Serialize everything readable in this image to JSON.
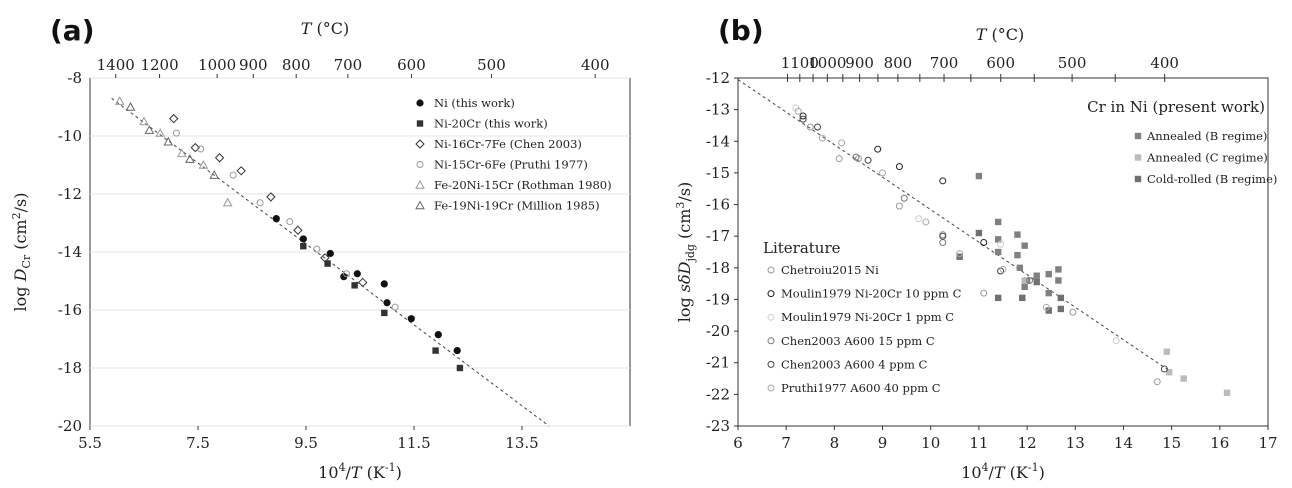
{
  "charts": [
    {
      "panel_label": "(a)",
      "xlabel_main": "10",
      "xlabel_sup": "4",
      "xlabel_rest": "/T (K",
      "xlabel_sup2": "-1",
      "xlabel_end": ")",
      "ylabel": "log D",
      "ylabel_sub": "Cr",
      "ylabel_unit": " (cm²/s)",
      "top_axis_label": "T (°C)",
      "x_ticks": [
        "5.5",
        "7.5",
        "9.5",
        "11.5",
        "13.5"
      ],
      "y_ticks": [
        "-8",
        "-10",
        "-12",
        "-14",
        "-16",
        "-18",
        "-20"
      ],
      "top_ticks": [
        "1400",
        "1200",
        "1000",
        "900",
        "800",
        "700",
        "600",
        "500",
        "400"
      ]
    },
    {
      "panel_label": "(b)",
      "xlabel_main": "10",
      "xlabel_sup": "4",
      "xlabel_rest": "/T (K",
      "xlabel_sup2": "-1",
      "xlabel_end": ")",
      "ylabel": "log sδD",
      "ylabel_sub": "jdg",
      "ylabel_unit": " (cm³/s)",
      "top_axis_label": "T (°C)",
      "x_ticks": [
        "6",
        "7",
        "8",
        "9",
        "10",
        "11",
        "12",
        "13",
        "14",
        "15",
        "16",
        "17"
      ],
      "y_ticks": [
        "-12",
        "-13",
        "-14",
        "-15",
        "-16",
        "-17",
        "-18",
        "-19",
        "-20",
        "-21",
        "-22",
        "-23"
      ],
      "top_ticks": [
        "1100",
        "1000",
        "900",
        "800",
        "700",
        "600",
        "500",
        "400"
      ],
      "legend_present_title": "Cr in Ni (present work)",
      "legend_literature_title": "Literature"
    }
  ],
  "chart_data": [
    {
      "type": "scatter",
      "title": "(a)",
      "xlabel": "10^4/T (K^-1)",
      "ylabel": "log D_Cr (cm^2/s)",
      "xlim": [
        5.5,
        15.5
      ],
      "ylim": [
        -20,
        -8
      ],
      "top_axis": {
        "label": "T (°C)",
        "ticks_celsius": [
          1400,
          1200,
          1000,
          900,
          800,
          700,
          600,
          500,
          400
        ]
      },
      "fit_line": {
        "x": [
          5.9,
          14.0
        ],
        "y": [
          -8.7,
          -20.0
        ],
        "style": "dashed"
      },
      "legend_position": "top-right",
      "series": [
        {
          "name": "Ni (this work)",
          "marker": "filled-circle",
          "color": "#111111",
          "x": [
            8.95,
            9.45,
            9.95,
            10.45,
            10.95,
            11.45,
            11.95,
            12.3,
            10.2,
            11.0
          ],
          "y": [
            -12.85,
            -13.55,
            -14.05,
            -14.75,
            -15.1,
            -16.3,
            -16.85,
            -17.4,
            -14.85,
            -15.75
          ]
        },
        {
          "name": "Ni-20Cr (this work)",
          "marker": "filled-square",
          "color": "#333333",
          "x": [
            9.45,
            9.9,
            10.4,
            10.95,
            11.9,
            12.35
          ],
          "y": [
            -13.8,
            -14.4,
            -15.15,
            -16.1,
            -17.4,
            -18.0
          ]
        },
        {
          "name": "Ni-16Cr-7Fe (Chen 2003)",
          "marker": "open-diamond",
          "color": "#333333",
          "x": [
            7.05,
            7.45,
            7.9,
            8.3,
            8.85,
            9.35,
            9.85,
            10.55
          ],
          "y": [
            -9.4,
            -10.4,
            -10.75,
            -11.2,
            -12.1,
            -13.25,
            -14.2,
            -15.05
          ]
        },
        {
          "name": "Ni-15Cr-6Fe (Pruthi 1977)",
          "marker": "open-circle",
          "color": "#999999",
          "x": [
            7.1,
            7.55,
            8.15,
            8.65,
            9.2,
            9.7,
            10.25,
            11.15
          ],
          "y": [
            -9.9,
            -10.45,
            -11.35,
            -12.3,
            -12.95,
            -13.9,
            -14.75,
            -15.9
          ]
        },
        {
          "name": "Fe-20Ni-15Cr (Rothman 1980)",
          "marker": "open-triangle",
          "color": "#999999",
          "x": [
            6.05,
            6.5,
            6.8,
            7.2,
            7.6,
            8.05
          ],
          "y": [
            -8.8,
            -9.5,
            -9.9,
            -10.6,
            -11.0,
            -12.3
          ]
        },
        {
          "name": "Fe-19Ni-19Cr (Million 1985)",
          "marker": "open-triangle",
          "color": "#666666",
          "x": [
            6.25,
            6.6,
            6.95,
            7.35,
            7.8
          ],
          "y": [
            -9.0,
            -9.8,
            -10.2,
            -10.8,
            -11.35
          ]
        }
      ]
    },
    {
      "type": "scatter",
      "title": "(b)",
      "xlabel": "10^4/T (K^-1)",
      "ylabel": "log sδD_jdg (cm^3/s)",
      "xlim": [
        6,
        17
      ],
      "ylim": [
        -23,
        -12
      ],
      "top_axis": {
        "label": "T (°C)",
        "ticks_celsius": [
          1100,
          1000,
          900,
          800,
          700,
          600,
          500,
          400
        ]
      },
      "fit_line": {
        "x": [
          6.0,
          14.9
        ],
        "y": [
          -12.05,
          -21.2
        ],
        "style": "dashed"
      },
      "series": [
        {
          "name": "Annealed (B regime)",
          "group": "Cr in Ni (present work)",
          "marker": "filled-square",
          "color": "#808080",
          "x": [
            11.0,
            11.4,
            11.4,
            11.8,
            11.8,
            11.95,
            12.0,
            12.2,
            12.45,
            12.45,
            12.65,
            12.65,
            11.95,
            11.4,
            11.85
          ],
          "y": [
            -15.1,
            -16.55,
            -17.1,
            -16.95,
            -17.6,
            -17.3,
            -18.4,
            -18.25,
            -18.2,
            -18.8,
            -18.05,
            -18.4,
            -18.6,
            -17.5,
            -18.0
          ]
        },
        {
          "name": "Annealed (C regime)",
          "group": "Cr in Ni (present work)",
          "marker": "filled-square",
          "color": "#bbbbbb",
          "x": [
            14.9,
            14.95,
            15.25,
            16.15,
            11.95
          ],
          "y": [
            -20.65,
            -21.3,
            -21.5,
            -21.95,
            -18.4
          ]
        },
        {
          "name": "Cold-rolled (B regime)",
          "group": "Cr in Ni (present work)",
          "marker": "filled-square",
          "color": "#707070",
          "x": [
            10.6,
            11.0,
            11.4,
            11.9,
            12.2,
            12.45,
            12.7,
            12.7
          ],
          "y": [
            -17.65,
            -16.9,
            -18.95,
            -18.95,
            -18.45,
            -19.35,
            -18.95,
            -19.3
          ]
        },
        {
          "name": "Chetroiu2015 Ni",
          "group": "Literature",
          "marker": "open-circle",
          "color": "#999999",
          "x": [
            7.5,
            8.1,
            8.5,
            9.35,
            10.25,
            11.1,
            12.95,
            14.7
          ],
          "y": [
            -13.55,
            -14.55,
            -14.55,
            -16.05,
            -16.95,
            -18.8,
            -19.4,
            -21.6
          ]
        },
        {
          "name": "Moulin1979 Ni-20Cr 10 ppm C",
          "group": "Literature",
          "marker": "open-circle",
          "color": "#222222",
          "x": [
            7.35,
            8.9,
            9.35,
            10.25,
            11.1
          ],
          "y": [
            -13.2,
            -14.25,
            -14.8,
            -15.25,
            -17.2
          ]
        },
        {
          "name": "Moulin1979 Ni-20Cr 1 ppm C",
          "group": "Literature",
          "marker": "open-circle",
          "color": "#cccccc",
          "x": [
            7.2,
            9.75,
            11.45,
            13.85
          ],
          "y": [
            -12.95,
            -16.45,
            -17.25,
            -20.3
          ]
        },
        {
          "name": "Chen2003 A600 15 ppm C",
          "group": "Literature",
          "marker": "open-circle",
          "color": "#777777",
          "x": [
            8.45,
            9.45,
            10.25,
            12.05
          ],
          "y": [
            -14.5,
            -15.8,
            -17.2,
            -18.4
          ]
        },
        {
          "name": "Chen2003 A600 4 ppm C",
          "group": "Literature",
          "marker": "open-circle",
          "color": "#444444",
          "x": [
            7.35,
            7.65,
            8.7,
            10.25,
            11.45,
            14.85
          ],
          "y": [
            -13.3,
            -13.55,
            -14.6,
            -17.0,
            -18.1,
            -21.2
          ]
        },
        {
          "name": "Pruthi1977 A600 40 ppm C",
          "group": "Literature",
          "marker": "open-circle",
          "color": "#aaaaaa",
          "x": [
            7.25,
            7.75,
            8.15,
            9.0,
            9.9,
            10.6,
            11.5,
            12.4
          ],
          "y": [
            -13.05,
            -13.9,
            -14.05,
            -15.0,
            -16.55,
            -17.55,
            -18.05,
            -19.25
          ]
        }
      ]
    }
  ]
}
